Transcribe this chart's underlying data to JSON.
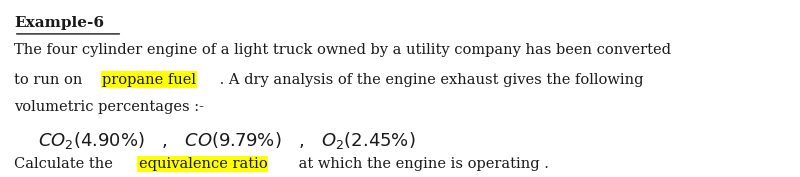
{
  "bg_color": "#ffffff",
  "title_text": "Example-6",
  "title_fontsize": 11,
  "body_fontsize": 10.5,
  "formula_fontsize": 13,
  "highlight_color": "#FFFF00",
  "text_color": "#1a1a1a",
  "fig_width": 8.0,
  "fig_height": 1.77,
  "dpi": 100,
  "line1": "The four cylinder engine of a light truck owned by a utility company has been converted",
  "line2_pre": "to run on ",
  "line2_highlight": "propane fuel",
  "line2_post": " . A dry analysis of the engine exhaust gives the following",
  "line3": "volumetric percentages :-",
  "line5_pre": "Calculate the ",
  "line5_highlight": "equivalence ratio",
  "line5_post": " at which the engine is operating ."
}
